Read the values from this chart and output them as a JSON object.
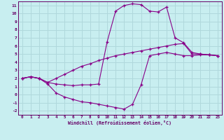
{
  "xlabel": "Windchill (Refroidissement éolien,°C)",
  "bg_color": "#c8eef0",
  "grid_color": "#b0d8dc",
  "line_color": "#880088",
  "xlim": [
    -0.5,
    23.5
  ],
  "ylim": [
    -2.5,
    11.5
  ],
  "xticks": [
    0,
    1,
    2,
    3,
    4,
    5,
    6,
    7,
    8,
    9,
    10,
    11,
    12,
    13,
    14,
    15,
    16,
    17,
    18,
    19,
    20,
    21,
    22,
    23
  ],
  "yticks": [
    -2,
    -1,
    0,
    1,
    2,
    3,
    4,
    5,
    6,
    7,
    8,
    9,
    10,
    11
  ],
  "series": [
    [
      2.0,
      2.2,
      2.0,
      1.5,
      1.3,
      1.2,
      1.1,
      1.2,
      1.2,
      1.3,
      6.5,
      10.3,
      11.0,
      11.2,
      11.1,
      10.3,
      10.2,
      10.8,
      7.0,
      6.4,
      5.2,
      5.0,
      4.9,
      4.8
    ],
    [
      2.0,
      2.2,
      2.0,
      1.3,
      0.2,
      -0.3,
      -0.6,
      -0.9,
      -1.0,
      -1.2,
      -1.4,
      -1.6,
      -1.8,
      -1.2,
      1.2,
      4.8,
      5.0,
      5.2,
      5.0,
      4.8,
      4.8,
      4.9,
      4.9,
      4.8
    ],
    [
      2.0,
      2.2,
      2.0,
      1.5,
      2.0,
      2.5,
      3.0,
      3.5,
      3.8,
      4.2,
      4.5,
      4.8,
      5.0,
      5.2,
      5.4,
      5.6,
      5.8,
      6.0,
      6.2,
      6.3,
      5.0,
      5.0,
      4.9,
      4.8
    ]
  ]
}
